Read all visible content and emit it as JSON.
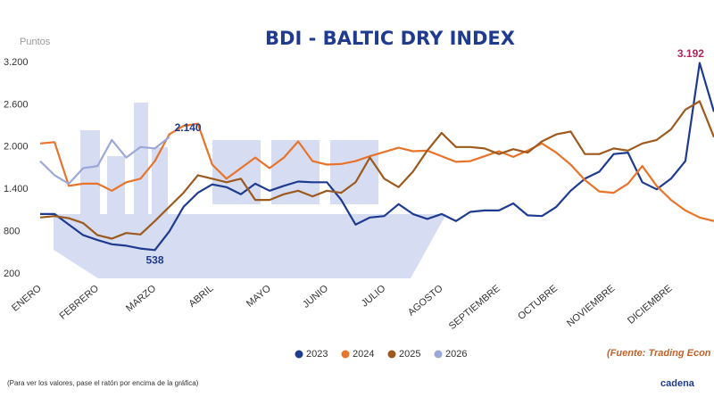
{
  "chart_data": {
    "type": "line",
    "title": "BDI - BALTIC DRY INDEX",
    "y_label": "Puntos",
    "note": "(Para ver los valores, pase el ratón por encima de la gráfica)",
    "source": "(Fuente: Trading Econ",
    "brand": "cadena",
    "categories": [
      "ENERO",
      null,
      null,
      null,
      "FEBRERO",
      null,
      null,
      null,
      "MARZO",
      null,
      null,
      null,
      "ABRIL",
      null,
      null,
      null,
      "MAYO",
      null,
      null,
      null,
      "JUNIO",
      null,
      null,
      null,
      "JULIO",
      null,
      null,
      null,
      "AGOSTO",
      null,
      null,
      null,
      "SEPTIEMBRE",
      null,
      null,
      null,
      "OCTUBRE",
      null,
      null,
      null,
      "NOVIEMBRE",
      null,
      null,
      null,
      "DICIEMBRE",
      null,
      null,
      null
    ],
    "ylim": [
      200,
      3200
    ],
    "yticks": [
      200,
      800,
      {
        "value": 1400,
        "label": "1.400"
      },
      {
        "value": 2000,
        "label": "2.000"
      },
      {
        "value": 2600,
        "label": "2.600"
      },
      {
        "value": 3200,
        "label": "3.200"
      }
    ],
    "grid": false,
    "series": [
      {
        "name": "2023",
        "color": "#1f3b8f",
        "label_colors": {
          "7": "#3aaa35",
          "46": "#b0245a"
        },
        "values": [
          1050,
          1050,
          900,
          750,
          680,
          620,
          600,
          560,
          538,
          800,
          1150,
          1350,
          1470,
          1430,
          1330,
          1480,
          1380,
          1450,
          1510,
          1500,
          1500,
          1250,
          900,
          1000,
          1020,
          1190,
          1050,
          980,
          1050,
          950,
          1080,
          1100,
          1100,
          1200,
          1030,
          1020,
          1150,
          1380,
          1550,
          1650,
          1900,
          1920,
          1500,
          1400,
          1550,
          1800,
          3192,
          2500
        ],
        "value_labels": [
          null,
          null,
          null,
          null,
          null,
          null,
          null,
          null,
          "538",
          null,
          null,
          null,
          null,
          null,
          null,
          null,
          null,
          null,
          null,
          null,
          null,
          null,
          null,
          null,
          null,
          null,
          null,
          null,
          null,
          null,
          null,
          null,
          null,
          null,
          null,
          null,
          null,
          null,
          null,
          null,
          null,
          null,
          null,
          null,
          null,
          null,
          "3.192",
          null
        ]
      },
      {
        "name": "2024",
        "color": "#e8732a",
        "values": [
          2050,
          2070,
          1450,
          1480,
          1480,
          1380,
          1500,
          1550,
          1800,
          2180,
          2300,
          2330,
          1750,
          1550,
          1700,
          1850,
          1700,
          1850,
          2080,
          1800,
          1750,
          1760,
          1800,
          1870,
          1930,
          1990,
          1940,
          1950,
          1870,
          1790,
          1800,
          1870,
          1940,
          1860,
          1950,
          2050,
          1920,
          1750,
          1530,
          1370,
          1350,
          1480,
          1730,
          1450,
          1250,
          1100,
          1000,
          950
        ]
      },
      {
        "name": "2025",
        "color": "#9c5a1e",
        "values": [
          1000,
          1020,
          990,
          920,
          750,
          700,
          780,
          760,
          950,
          1150,
          1350,
          1600,
          1550,
          1500,
          1550,
          1250,
          1250,
          1330,
          1380,
          1300,
          1380,
          1350,
          1500,
          1850,
          1550,
          1430,
          1650,
          1950,
          2200,
          2000,
          2000,
          1980,
          1900,
          1970,
          1920,
          2080,
          2180,
          2220,
          1900,
          1900,
          1980,
          1950,
          2050,
          2100,
          2250,
          2530,
          2650,
          2140
        ]
      },
      {
        "name": "2026",
        "color": "#9ba8d8",
        "label_colors": {
          "9": "#1f3b8f"
        },
        "values": [
          1800,
          1600,
          1480,
          1700,
          1730,
          2100,
          1850,
          2000,
          1980,
          2140,
          null,
          null,
          null,
          null,
          null,
          null,
          null,
          null,
          null,
          null,
          null,
          null,
          null,
          null,
          null,
          null,
          null,
          null,
          null,
          null,
          null,
          null,
          null,
          null,
          null,
          null,
          null,
          null,
          null,
          null,
          null,
          null,
          null,
          null,
          null,
          null,
          null,
          null
        ],
        "value_labels": [
          null,
          null,
          null,
          null,
          null,
          null,
          null,
          null,
          null,
          "2.140",
          null,
          null,
          null,
          null,
          null,
          null,
          null,
          null,
          null,
          null,
          null,
          null,
          null,
          null,
          null,
          null,
          null,
          null,
          null,
          null,
          null,
          null,
          null,
          null,
          null,
          null,
          null,
          null,
          null,
          null,
          null,
          null,
          null,
          null,
          null,
          null,
          null,
          null
        ]
      }
    ]
  }
}
